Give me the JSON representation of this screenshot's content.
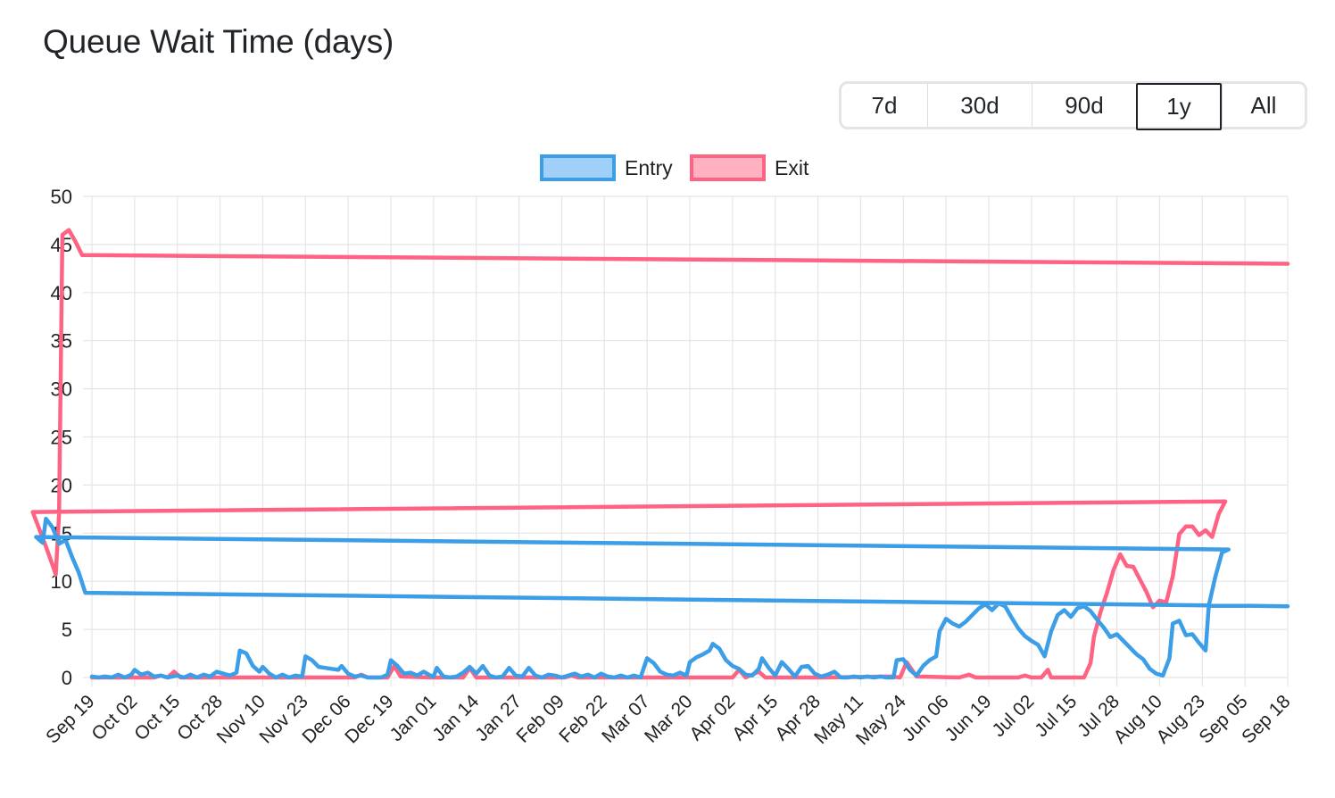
{
  "title": "Queue Wait Time (days)",
  "range_buttons": [
    {
      "label": "7d",
      "active": false
    },
    {
      "label": "30d",
      "active": false
    },
    {
      "label": "90d",
      "active": false
    },
    {
      "label": "1y",
      "active": true
    },
    {
      "label": "All",
      "active": false
    }
  ],
  "colors": {
    "entry_line": "#3b9ee6",
    "entry_fill": "#a0d0f7",
    "exit_line": "#ff6384",
    "exit_fill": "#ffb1c1",
    "grid": "#e5e5e5",
    "text": "#222222"
  },
  "chart_data": {
    "type": "line",
    "title": "Queue Wait Time (days)",
    "xlabel": "",
    "ylabel": "",
    "x_start": "Sep 19",
    "x_end": "Sep 18",
    "x_ticks": [
      "Sep 19",
      "Oct 02",
      "Oct 15",
      "Oct 28",
      "Nov 10",
      "Nov 23",
      "Dec 06",
      "Dec 19",
      "Jan 01",
      "Jan 14",
      "Jan 27",
      "Feb 09",
      "Feb 22",
      "Mar 07",
      "Mar 20",
      "Apr 02",
      "Apr 15",
      "Apr 28",
      "May 11",
      "May 24",
      "Jun 06",
      "Jun 19",
      "Jul 02",
      "Jul 15",
      "Jul 28",
      "Aug 10",
      "Aug 23",
      "Sep 05",
      "Sep 18"
    ],
    "ylim": [
      0,
      50
    ],
    "y_ticks": [
      0,
      5,
      10,
      15,
      20,
      25,
      30,
      35,
      40,
      45,
      50
    ],
    "grid": true,
    "legend_position": "top",
    "series": [
      {
        "name": "Entry",
        "points": [
          [
            "Sep 19",
            0.1
          ],
          [
            "Sep 21",
            0
          ],
          [
            "Sep 23",
            0.1
          ],
          [
            "Sep 25",
            0
          ],
          [
            "Sep 27",
            0.3
          ],
          [
            "Sep 29",
            0
          ],
          [
            "Oct 01",
            0.3
          ],
          [
            "Oct 02",
            0.8
          ],
          [
            "Oct 04",
            0.3
          ],
          [
            "Oct 06",
            0.5
          ],
          [
            "Oct 08",
            0.1
          ],
          [
            "Oct 10",
            0.2
          ],
          [
            "Oct 12",
            0
          ],
          [
            "Oct 15",
            0.2
          ],
          [
            "Oct 17",
            0
          ],
          [
            "Oct 19",
            0.3
          ],
          [
            "Oct 21",
            0
          ],
          [
            "Oct 23",
            0.3
          ],
          [
            "Oct 25",
            0.1
          ],
          [
            "Oct 27",
            0.6
          ],
          [
            "Oct 29",
            0.4
          ],
          [
            "Oct 31",
            0.2
          ],
          [
            "Nov 02",
            0.5
          ],
          [
            "Nov 03",
            2.8
          ],
          [
            "Nov 05",
            2.5
          ],
          [
            "Nov 07",
            1.2
          ],
          [
            "Nov 09",
            0.6
          ],
          [
            "Nov 10",
            1.1
          ],
          [
            "Nov 12",
            0.4
          ],
          [
            "Nov 14",
            0
          ],
          [
            "Nov 16",
            0.3
          ],
          [
            "Nov 18",
            0
          ],
          [
            "Nov 20",
            0.2
          ],
          [
            "Nov 22",
            0.1
          ],
          [
            "Nov 23",
            2.2
          ],
          [
            "Nov 25",
            1.8
          ],
          [
            "Nov 27",
            1.1
          ],
          [
            "Nov 29",
            1.0
          ],
          [
            "Dec 01",
            0.9
          ],
          [
            "Dec 03",
            0.8
          ],
          [
            "Dec 04",
            1.2
          ],
          [
            "Dec 06",
            0.4
          ],
          [
            "Dec 08",
            0.1
          ],
          [
            "Dec 10",
            0.2
          ],
          [
            "Dec 12",
            0
          ],
          [
            "Dec 14",
            0
          ],
          [
            "Dec 16",
            0
          ],
          [
            "Dec 18",
            0.3
          ],
          [
            "Dec 19",
            1.8
          ],
          [
            "Dec 21",
            1.2
          ],
          [
            "Dec 23",
            0.4
          ],
          [
            "Dec 25",
            0.5
          ],
          [
            "Dec 27",
            0.2
          ],
          [
            "Dec 29",
            0.6
          ],
          [
            "Dec 31",
            0.2
          ],
          [
            "Jan 01",
            0.1
          ],
          [
            "Jan 02",
            1.0
          ],
          [
            "Jan 04",
            0.1
          ],
          [
            "Jan 06",
            0
          ],
          [
            "Jan 08",
            0.1
          ],
          [
            "Jan 10",
            0.5
          ],
          [
            "Jan 12",
            1.1
          ],
          [
            "Jan 14",
            0.4
          ],
          [
            "Jan 16",
            1.2
          ],
          [
            "Jan 18",
            0.2
          ],
          [
            "Jan 20",
            0
          ],
          [
            "Jan 22",
            0.1
          ],
          [
            "Jan 24",
            1.0
          ],
          [
            "Jan 26",
            0.2
          ],
          [
            "Jan 28",
            0.1
          ],
          [
            "Jan 30",
            1.0
          ],
          [
            "Feb 01",
            0.2
          ],
          [
            "Feb 03",
            0
          ],
          [
            "Feb 05",
            0.3
          ],
          [
            "Feb 07",
            0.2
          ],
          [
            "Feb 09",
            0
          ],
          [
            "Feb 11",
            0.2
          ],
          [
            "Feb 13",
            0.4
          ],
          [
            "Feb 15",
            0.1
          ],
          [
            "Feb 17",
            0.3
          ],
          [
            "Feb 19",
            0
          ],
          [
            "Feb 21",
            0.4
          ],
          [
            "Feb 23",
            0.1
          ],
          [
            "Feb 25",
            0
          ],
          [
            "Feb 27",
            0.2
          ],
          [
            "Mar 01",
            0
          ],
          [
            "Mar 03",
            0.2
          ],
          [
            "Mar 05",
            0
          ],
          [
            "Mar 07",
            2.0
          ],
          [
            "Mar 09",
            1.5
          ],
          [
            "Mar 11",
            0.6
          ],
          [
            "Mar 13",
            0.3
          ],
          [
            "Mar 15",
            0.2
          ],
          [
            "Mar 17",
            0.5
          ],
          [
            "Mar 19",
            0.2
          ],
          [
            "Mar 20",
            1.6
          ],
          [
            "Mar 22",
            2.1
          ],
          [
            "Mar 24",
            2.4
          ],
          [
            "Mar 26",
            2.8
          ],
          [
            "Mar 27",
            3.5
          ],
          [
            "Mar 29",
            3.0
          ],
          [
            "Mar 31",
            1.8
          ],
          [
            "Apr 02",
            1.2
          ],
          [
            "Apr 04",
            0.9
          ],
          [
            "Apr 06",
            0.3
          ],
          [
            "Apr 08",
            0.2
          ],
          [
            "Apr 10",
            0.9
          ],
          [
            "Apr 11",
            2.0
          ],
          [
            "Apr 13",
            1.0
          ],
          [
            "Apr 15",
            0.2
          ],
          [
            "Apr 17",
            1.6
          ],
          [
            "Apr 19",
            0.9
          ],
          [
            "Apr 21",
            0.1
          ],
          [
            "Apr 23",
            1.1
          ],
          [
            "Apr 25",
            1.2
          ],
          [
            "Apr 27",
            0.4
          ],
          [
            "Apr 29",
            0.1
          ],
          [
            "May 01",
            0.3
          ],
          [
            "May 03",
            0.6
          ],
          [
            "May 05",
            0
          ],
          [
            "May 07",
            0
          ],
          [
            "May 09",
            0.1
          ],
          [
            "May 11",
            0
          ],
          [
            "May 13",
            0.1
          ],
          [
            "May 15",
            0
          ],
          [
            "May 17",
            0.1
          ],
          [
            "May 19",
            0
          ],
          [
            "May 21",
            0
          ],
          [
            "May 22",
            1.8
          ],
          [
            "May 24",
            1.9
          ],
          [
            "May 26",
            0.8
          ],
          [
            "May 28",
            0.2
          ],
          [
            "May 30",
            1.2
          ],
          [
            "Jun 01",
            1.8
          ],
          [
            "Jun 03",
            2.2
          ],
          [
            "Jun 04",
            4.8
          ],
          [
            "Jun 06",
            6.1
          ],
          [
            "Jun 08",
            5.6
          ],
          [
            "Jun 10",
            5.3
          ],
          [
            "Jun 12",
            5.8
          ],
          [
            "Jun 14",
            6.5
          ],
          [
            "Jun 16",
            7.2
          ],
          [
            "Jun 18",
            7.6
          ],
          [
            "Jun 20",
            7.0
          ],
          [
            "Jun 22",
            7.7
          ],
          [
            "Jun 24",
            7.4
          ],
          [
            "Jun 26",
            6.2
          ],
          [
            "Jun 28",
            5.1
          ],
          [
            "Jun 30",
            4.3
          ],
          [
            "Jul 02",
            3.8
          ],
          [
            "Jul 04",
            3.4
          ],
          [
            "Jul 06",
            2.2
          ],
          [
            "Jul 08",
            4.8
          ],
          [
            "Jul 10",
            6.5
          ],
          [
            "Jul 12",
            7.0
          ],
          [
            "Jul 14",
            6.3
          ],
          [
            "Jul 16",
            7.2
          ],
          [
            "Jul 18",
            7.4
          ],
          [
            "Jul 20",
            6.9
          ],
          [
            "Jul 22",
            6.0
          ],
          [
            "Jul 24",
            5.2
          ],
          [
            "Jul 26",
            4.2
          ],
          [
            "Jul 28",
            4.5
          ],
          [
            "Jul 30",
            3.8
          ],
          [
            "Aug 01",
            3.1
          ],
          [
            "Aug 03",
            2.4
          ],
          [
            "Aug 05",
            1.9
          ],
          [
            "Aug 07",
            0.9
          ],
          [
            "Aug 09",
            0.4
          ],
          [
            "Aug 11",
            0.2
          ],
          [
            "Aug 13",
            2.0
          ],
          [
            "Aug 14",
            5.6
          ],
          [
            "Aug 16",
            5.9
          ],
          [
            "Aug 18",
            4.4
          ],
          [
            "Aug 20",
            4.5
          ],
          [
            "Aug 22",
            3.6
          ],
          [
            "Aug 24",
            2.8
          ],
          [
            "Aug 25",
            7.5
          ],
          [
            "Aug 27",
            10.5
          ],
          [
            "Aug 29",
            13.0
          ],
          [
            "Aug 31",
            13.3
          ],
          [
            "Sep 02",
            14.6
          ],
          [
            "Sep 04",
            14.0
          ],
          [
            "Sep 05",
            16.5
          ],
          [
            "Sep 07",
            15.6
          ],
          [
            "Sep 09",
            13.9
          ],
          [
            "Sep 11",
            14.3
          ],
          [
            "Sep 13",
            12.5
          ],
          [
            "Sep 15",
            10.9
          ],
          [
            "Sep 17",
            8.8
          ],
          [
            "Sep 18",
            7.4
          ]
        ]
      },
      {
        "name": "Exit",
        "points": [
          [
            "Sep 19",
            0
          ],
          [
            "Sep 24",
            0
          ],
          [
            "Sep 29",
            0
          ],
          [
            "Oct 02",
            0
          ],
          [
            "Oct 08",
            0
          ],
          [
            "Oct 10",
            0.2
          ],
          [
            "Oct 12",
            0
          ],
          [
            "Oct 14",
            0.6
          ],
          [
            "Oct 16",
            0
          ],
          [
            "Oct 22",
            0
          ],
          [
            "Oct 28",
            0
          ],
          [
            "Nov 05",
            0
          ],
          [
            "Nov 10",
            0
          ],
          [
            "Nov 20",
            0
          ],
          [
            "Nov 30",
            0
          ],
          [
            "Dec 08",
            0
          ],
          [
            "Dec 10",
            0.3
          ],
          [
            "Dec 12",
            0
          ],
          [
            "Dec 18",
            0
          ],
          [
            "Dec 20",
            1.2
          ],
          [
            "Dec 22",
            0.1
          ],
          [
            "Dec 31",
            0
          ],
          [
            "Jan 10",
            0
          ],
          [
            "Jan 12",
            1.0
          ],
          [
            "Jan 14",
            0
          ],
          [
            "Jan 31",
            0
          ],
          [
            "Feb 10",
            0
          ],
          [
            "Feb 12",
            0.2
          ],
          [
            "Feb 14",
            0
          ],
          [
            "Mar 10",
            0
          ],
          [
            "Apr 02",
            0
          ],
          [
            "Apr 04",
            0.8
          ],
          [
            "Apr 06",
            0
          ],
          [
            "Apr 10",
            0.6
          ],
          [
            "Apr 12",
            0
          ],
          [
            "Apr 30",
            0
          ],
          [
            "May 20",
            0.1
          ],
          [
            "May 23",
            0
          ],
          [
            "May 25",
            1.6
          ],
          [
            "May 28",
            0.1
          ],
          [
            "Jun 10",
            0
          ],
          [
            "Jun 13",
            0.3
          ],
          [
            "Jun 15",
            0
          ],
          [
            "Jun 28",
            0
          ],
          [
            "Jun 30",
            0.2
          ],
          [
            "Jul 02",
            0
          ],
          [
            "Jul 05",
            0
          ],
          [
            "Jul 07",
            0.8
          ],
          [
            "Jul 08",
            0
          ],
          [
            "Jul 18",
            0
          ],
          [
            "Jul 20",
            1.5
          ],
          [
            "Jul 21",
            4.2
          ],
          [
            "Jul 23",
            6.8
          ],
          [
            "Jul 25",
            8.8
          ],
          [
            "Jul 27",
            11.2
          ],
          [
            "Jul 29",
            12.8
          ],
          [
            "Jul 31",
            11.6
          ],
          [
            "Aug 02",
            11.5
          ],
          [
            "Aug 04",
            10.2
          ],
          [
            "Aug 06",
            8.9
          ],
          [
            "Aug 08",
            7.3
          ],
          [
            "Aug 10",
            8.0
          ],
          [
            "Aug 12",
            7.8
          ],
          [
            "Aug 14",
            10.5
          ],
          [
            "Aug 16",
            14.9
          ],
          [
            "Aug 18",
            15.7
          ],
          [
            "Aug 20",
            15.7
          ],
          [
            "Aug 22",
            14.8
          ],
          [
            "Aug 24",
            15.3
          ],
          [
            "Aug 26",
            14.6
          ],
          [
            "Aug 28",
            17.0
          ],
          [
            "Aug 30",
            18.3
          ],
          [
            "Sep 01",
            17.2
          ],
          [
            "Sep 03",
            15.4
          ],
          [
            "Sep 05",
            13.6
          ],
          [
            "Sep 07",
            11.7
          ],
          [
            "Sep 08",
            10.7
          ],
          [
            "Sep 09",
            17.0
          ],
          [
            "Sep 10",
            46.0
          ],
          [
            "Sep 12",
            46.5
          ],
          [
            "Sep 14",
            45.3
          ],
          [
            "Sep 16",
            43.9
          ],
          [
            "Sep 18",
            43.0
          ]
        ]
      }
    ]
  }
}
